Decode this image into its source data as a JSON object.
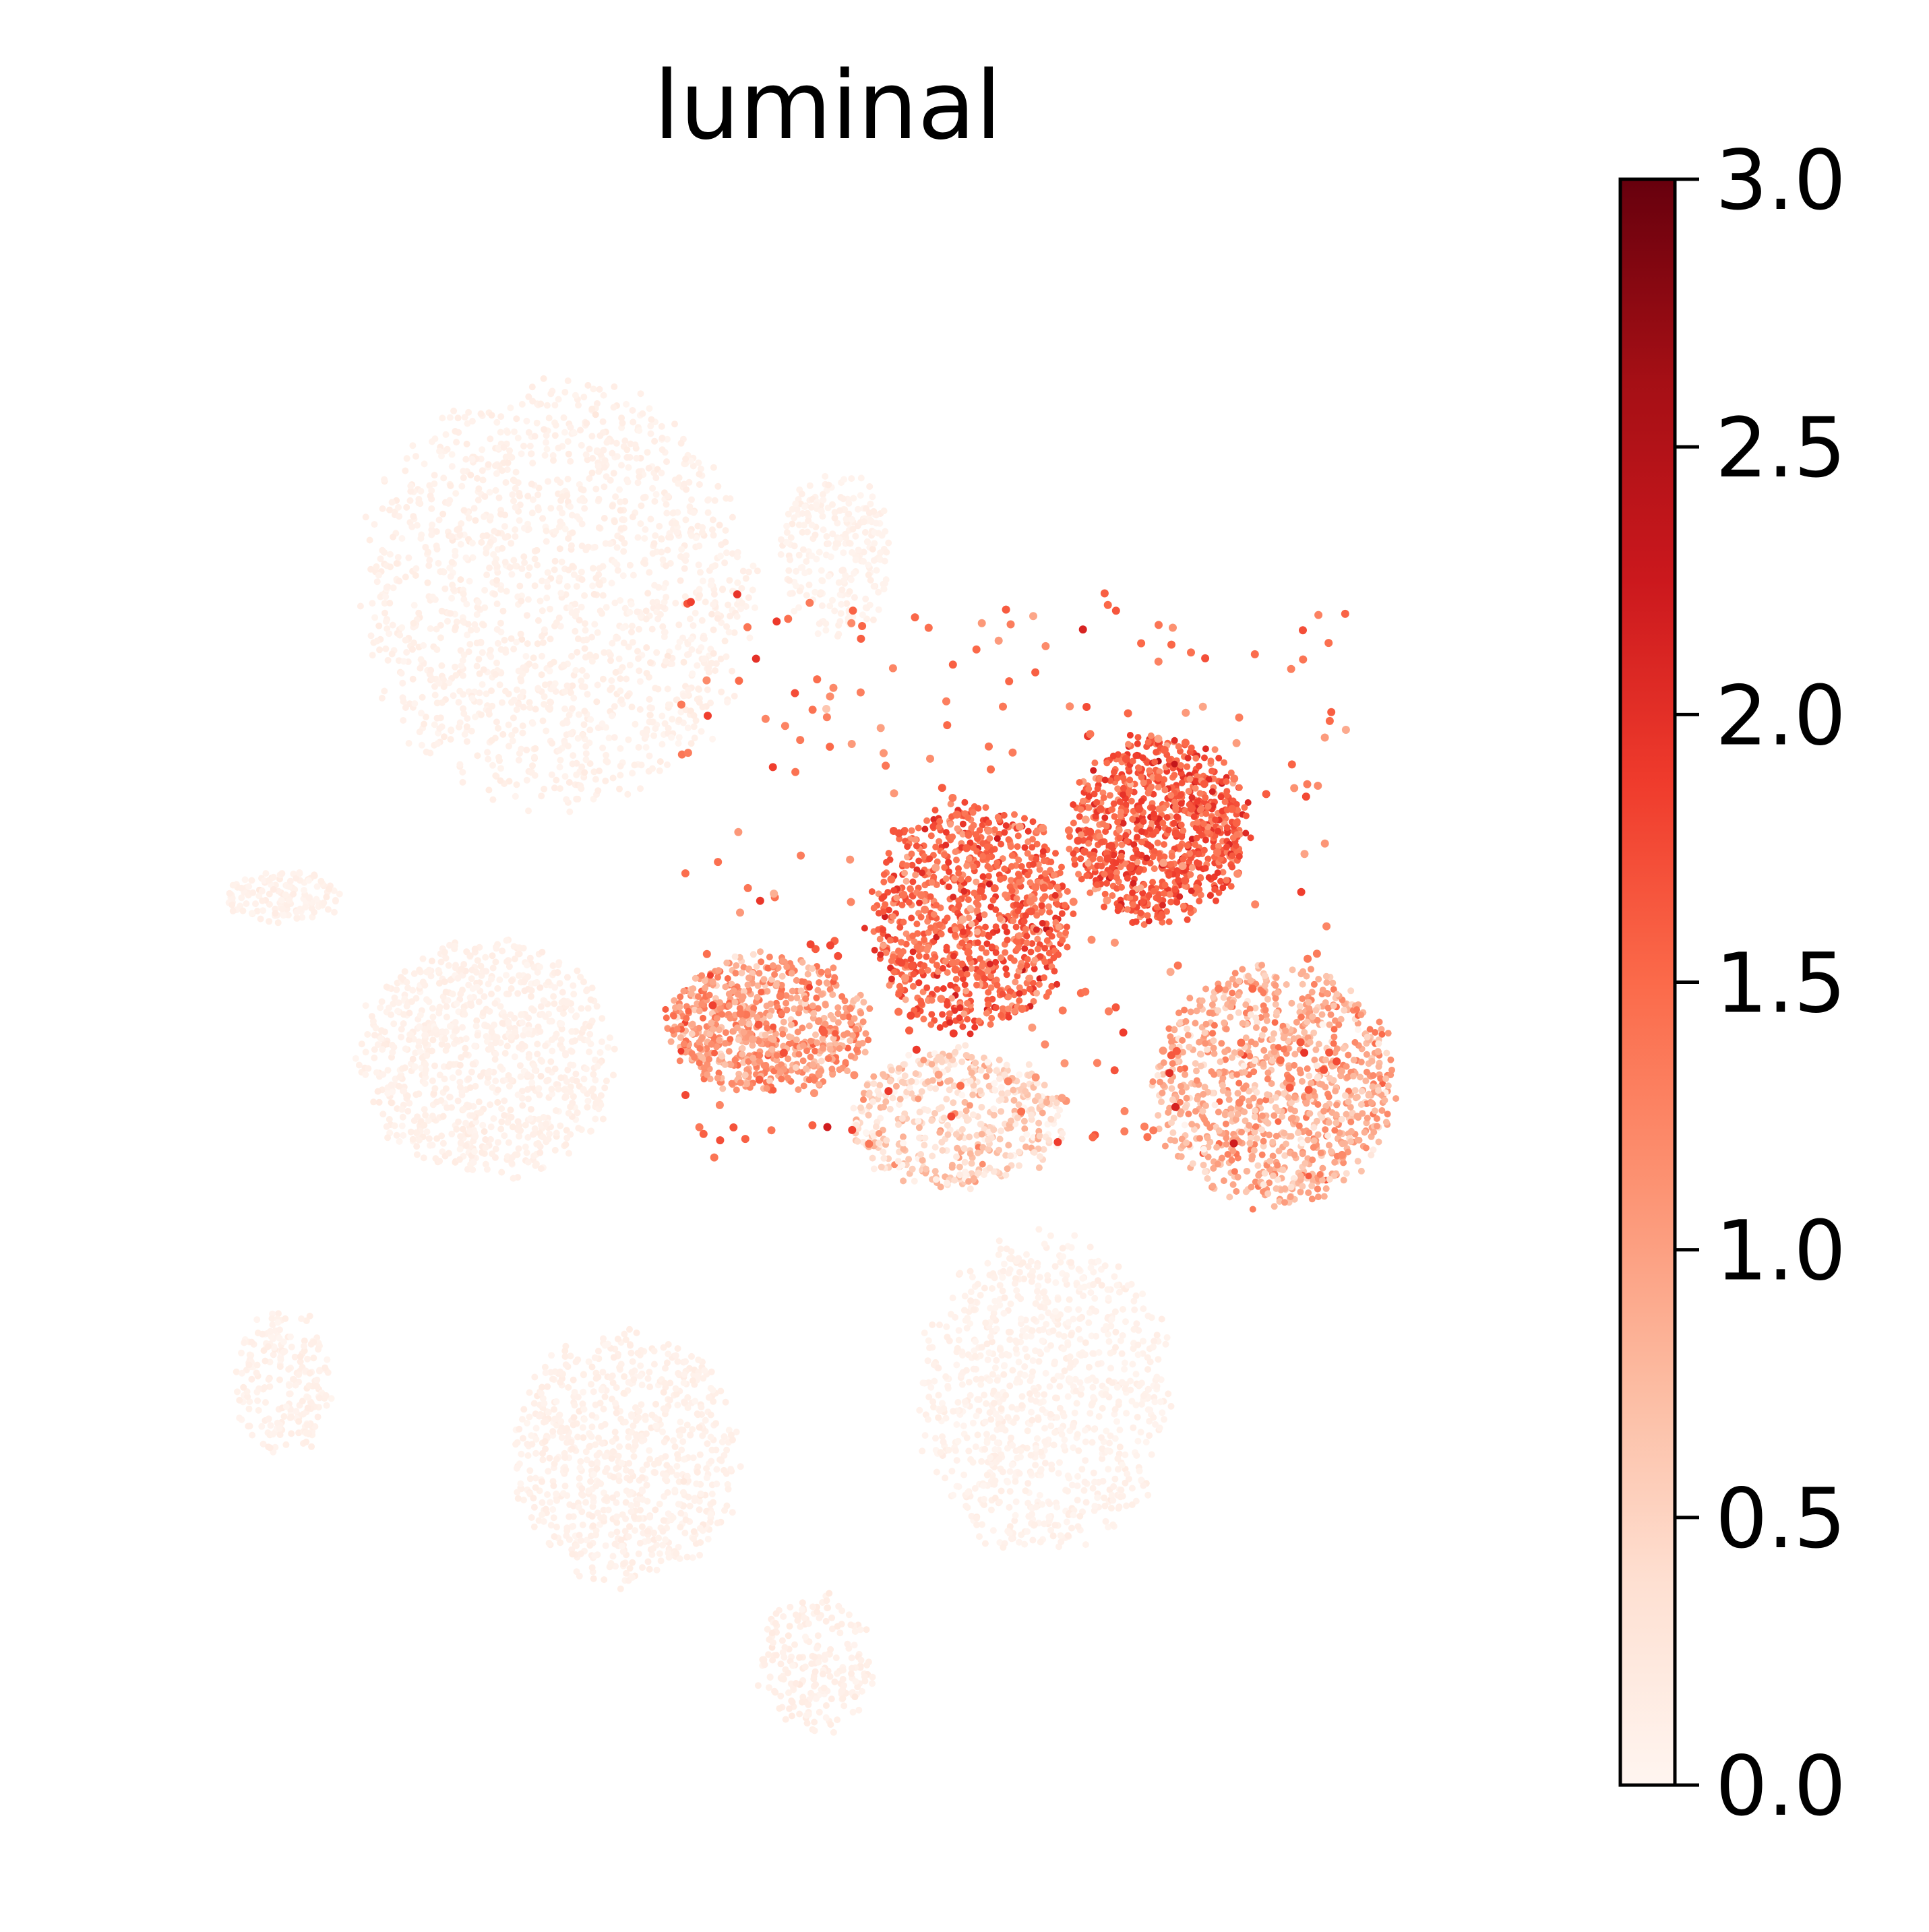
{
  "chart_data": {
    "type": "scatter",
    "title": "luminal",
    "xlabel": "",
    "ylabel": "",
    "axes_visible": false,
    "grid": false,
    "colorbar": {
      "colormap": "Reds",
      "colors": [
        "#fff5f0",
        "#fee0d2",
        "#fcbba1",
        "#fc9272",
        "#fb6a4a",
        "#ef3b2c",
        "#cb181d",
        "#a50f15",
        "#67000d"
      ],
      "range": [
        0.0,
        3.0
      ],
      "ticks": [
        0.0,
        0.5,
        1.0,
        1.5,
        2.0,
        2.5,
        3.0
      ],
      "tick_labels": [
        "0.0",
        "0.5",
        "1.0",
        "1.5",
        "2.0",
        "2.5",
        "3.0"
      ],
      "placement": "right"
    },
    "clusters": [
      {
        "id": "top-left-large",
        "expression": 0.08
      },
      {
        "id": "top-right-small",
        "expression": 0.06
      },
      {
        "id": "left-small",
        "expression": 0.07
      },
      {
        "id": "middle-left",
        "expression": 0.08
      },
      {
        "id": "bottom-left-small",
        "expression": 0.07
      },
      {
        "id": "bottom-center-left",
        "expression": 0.08
      },
      {
        "id": "bottom-center-right",
        "expression": 0.06
      },
      {
        "id": "bottom-small",
        "expression": 0.1
      },
      {
        "id": "center-left-lobe",
        "expression": 1.05
      },
      {
        "id": "center-core",
        "expression": 1.55
      },
      {
        "id": "center-top-right",
        "expression": 1.6
      },
      {
        "id": "right-lobe",
        "expression": 0.85
      },
      {
        "id": "center-lower",
        "expression": 0.45
      },
      {
        "id": "filaments",
        "expression": 1.45
      }
    ]
  }
}
